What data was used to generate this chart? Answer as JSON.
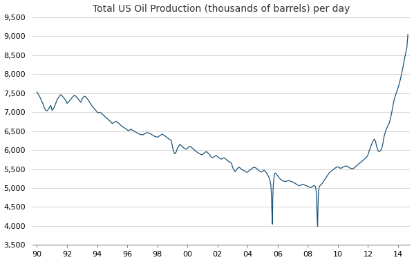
{
  "title": "Total US Oil Production (thousands of barrels) per day",
  "line_color": "#1a5276",
  "background_color": "#ffffff",
  "grid_color": "#d0d0d0",
  "ylim": [
    3500,
    9500
  ],
  "yticks": [
    3500,
    4000,
    4500,
    5000,
    5500,
    6000,
    6500,
    7000,
    7500,
    8000,
    8500,
    9000,
    9500
  ],
  "ytick_labels": [
    "3,500",
    "4,000",
    "4,500",
    "5,000",
    "5,500",
    "6,000",
    "6,500",
    "7,000",
    "7,500",
    "8,000",
    "8,500",
    "9,000",
    "9,500"
  ],
  "xtick_positions": [
    1990,
    1992,
    1994,
    1996,
    1998,
    2000,
    2002,
    2004,
    2006,
    2008,
    2010,
    2012,
    2014
  ],
  "xtick_labels": [
    "90",
    "92",
    "94",
    "96",
    "98",
    "00",
    "02",
    "04",
    "06",
    "08",
    "10",
    "12",
    "14"
  ],
  "xlim_start": 1989.7,
  "xlim_end": 2014.8,
  "data": [
    [
      1990.0,
      7530
    ],
    [
      1990.08,
      7480
    ],
    [
      1990.17,
      7420
    ],
    [
      1990.25,
      7350
    ],
    [
      1990.33,
      7280
    ],
    [
      1990.42,
      7200
    ],
    [
      1990.5,
      7100
    ],
    [
      1990.58,
      7050
    ],
    [
      1990.67,
      7030
    ],
    [
      1990.75,
      7070
    ],
    [
      1990.83,
      7120
    ],
    [
      1990.92,
      7180
    ],
    [
      1991.0,
      7050
    ],
    [
      1991.08,
      7080
    ],
    [
      1991.17,
      7150
    ],
    [
      1991.25,
      7230
    ],
    [
      1991.33,
      7320
    ],
    [
      1991.42,
      7380
    ],
    [
      1991.5,
      7430
    ],
    [
      1991.58,
      7460
    ],
    [
      1991.67,
      7430
    ],
    [
      1991.75,
      7390
    ],
    [
      1991.83,
      7350
    ],
    [
      1991.92,
      7310
    ],
    [
      1992.0,
      7230
    ],
    [
      1992.08,
      7260
    ],
    [
      1992.17,
      7300
    ],
    [
      1992.25,
      7340
    ],
    [
      1992.33,
      7380
    ],
    [
      1992.42,
      7420
    ],
    [
      1992.5,
      7440
    ],
    [
      1992.58,
      7420
    ],
    [
      1992.67,
      7380
    ],
    [
      1992.75,
      7340
    ],
    [
      1992.83,
      7300
    ],
    [
      1992.92,
      7260
    ],
    [
      1993.0,
      7350
    ],
    [
      1993.08,
      7390
    ],
    [
      1993.17,
      7420
    ],
    [
      1993.25,
      7400
    ],
    [
      1993.33,
      7360
    ],
    [
      1993.42,
      7310
    ],
    [
      1993.5,
      7260
    ],
    [
      1993.58,
      7210
    ],
    [
      1993.67,
      7160
    ],
    [
      1993.75,
      7120
    ],
    [
      1993.83,
      7080
    ],
    [
      1993.92,
      7040
    ],
    [
      1994.0,
      7000
    ],
    [
      1994.08,
      6980
    ],
    [
      1994.17,
      7000
    ],
    [
      1994.25,
      6980
    ],
    [
      1994.33,
      6950
    ],
    [
      1994.42,
      6920
    ],
    [
      1994.5,
      6890
    ],
    [
      1994.58,
      6860
    ],
    [
      1994.67,
      6830
    ],
    [
      1994.75,
      6800
    ],
    [
      1994.83,
      6770
    ],
    [
      1994.92,
      6740
    ],
    [
      1995.0,
      6700
    ],
    [
      1995.08,
      6720
    ],
    [
      1995.17,
      6740
    ],
    [
      1995.25,
      6760
    ],
    [
      1995.33,
      6740
    ],
    [
      1995.42,
      6710
    ],
    [
      1995.5,
      6680
    ],
    [
      1995.58,
      6650
    ],
    [
      1995.67,
      6620
    ],
    [
      1995.75,
      6600
    ],
    [
      1995.83,
      6580
    ],
    [
      1995.92,
      6560
    ],
    [
      1996.0,
      6530
    ],
    [
      1996.08,
      6510
    ],
    [
      1996.17,
      6530
    ],
    [
      1996.25,
      6550
    ],
    [
      1996.33,
      6530
    ],
    [
      1996.42,
      6510
    ],
    [
      1996.5,
      6490
    ],
    [
      1996.58,
      6470
    ],
    [
      1996.67,
      6450
    ],
    [
      1996.75,
      6430
    ],
    [
      1996.83,
      6420
    ],
    [
      1996.92,
      6410
    ],
    [
      1997.0,
      6400
    ],
    [
      1997.08,
      6410
    ],
    [
      1997.17,
      6430
    ],
    [
      1997.25,
      6450
    ],
    [
      1997.33,
      6460
    ],
    [
      1997.42,
      6450
    ],
    [
      1997.5,
      6440
    ],
    [
      1997.58,
      6420
    ],
    [
      1997.67,
      6400
    ],
    [
      1997.75,
      6380
    ],
    [
      1997.83,
      6360
    ],
    [
      1997.92,
      6350
    ],
    [
      1998.0,
      6340
    ],
    [
      1998.08,
      6360
    ],
    [
      1998.17,
      6380
    ],
    [
      1998.25,
      6400
    ],
    [
      1998.33,
      6420
    ],
    [
      1998.42,
      6400
    ],
    [
      1998.5,
      6380
    ],
    [
      1998.58,
      6350
    ],
    [
      1998.67,
      6320
    ],
    [
      1998.75,
      6300
    ],
    [
      1998.83,
      6280
    ],
    [
      1998.92,
      6260
    ],
    [
      1999.0,
      6100
    ],
    [
      1999.08,
      5960
    ],
    [
      1999.17,
      5900
    ],
    [
      1999.25,
      5950
    ],
    [
      1999.33,
      6050
    ],
    [
      1999.42,
      6100
    ],
    [
      1999.5,
      6150
    ],
    [
      1999.58,
      6120
    ],
    [
      1999.67,
      6090
    ],
    [
      1999.75,
      6060
    ],
    [
      1999.83,
      6040
    ],
    [
      1999.92,
      6020
    ],
    [
      2000.0,
      6050
    ],
    [
      2000.08,
      6080
    ],
    [
      2000.17,
      6100
    ],
    [
      2000.25,
      6080
    ],
    [
      2000.33,
      6050
    ],
    [
      2000.42,
      6020
    ],
    [
      2000.5,
      5990
    ],
    [
      2000.58,
      5960
    ],
    [
      2000.67,
      5940
    ],
    [
      2000.75,
      5920
    ],
    [
      2000.83,
      5900
    ],
    [
      2000.92,
      5880
    ],
    [
      2001.0,
      5880
    ],
    [
      2001.08,
      5910
    ],
    [
      2001.17,
      5940
    ],
    [
      2001.25,
      5960
    ],
    [
      2001.33,
      5940
    ],
    [
      2001.42,
      5900
    ],
    [
      2001.5,
      5860
    ],
    [
      2001.58,
      5820
    ],
    [
      2001.67,
      5800
    ],
    [
      2001.75,
      5820
    ],
    [
      2001.83,
      5840
    ],
    [
      2001.92,
      5860
    ],
    [
      2002.0,
      5830
    ],
    [
      2002.08,
      5800
    ],
    [
      2002.17,
      5780
    ],
    [
      2002.25,
      5760
    ],
    [
      2002.33,
      5780
    ],
    [
      2002.42,
      5800
    ],
    [
      2002.5,
      5780
    ],
    [
      2002.58,
      5750
    ],
    [
      2002.67,
      5720
    ],
    [
      2002.75,
      5700
    ],
    [
      2002.83,
      5680
    ],
    [
      2002.92,
      5660
    ],
    [
      2003.0,
      5550
    ],
    [
      2003.08,
      5480
    ],
    [
      2003.17,
      5430
    ],
    [
      2003.25,
      5480
    ],
    [
      2003.33,
      5520
    ],
    [
      2003.42,
      5550
    ],
    [
      2003.5,
      5530
    ],
    [
      2003.58,
      5500
    ],
    [
      2003.67,
      5480
    ],
    [
      2003.75,
      5460
    ],
    [
      2003.83,
      5440
    ],
    [
      2003.92,
      5420
    ],
    [
      2004.0,
      5420
    ],
    [
      2004.08,
      5450
    ],
    [
      2004.17,
      5480
    ],
    [
      2004.25,
      5500
    ],
    [
      2004.33,
      5530
    ],
    [
      2004.42,
      5550
    ],
    [
      2004.5,
      5540
    ],
    [
      2004.58,
      5520
    ],
    [
      2004.67,
      5490
    ],
    [
      2004.75,
      5460
    ],
    [
      2004.83,
      5440
    ],
    [
      2004.92,
      5420
    ],
    [
      2005.0,
      5450
    ],
    [
      2005.08,
      5470
    ],
    [
      2005.17,
      5440
    ],
    [
      2005.25,
      5400
    ],
    [
      2005.33,
      5350
    ],
    [
      2005.42,
      5280
    ],
    [
      2005.5,
      5180
    ],
    [
      2005.55,
      5050
    ],
    [
      2005.58,
      4800
    ],
    [
      2005.62,
      4300
    ],
    [
      2005.65,
      4050
    ],
    [
      2005.67,
      4700
    ],
    [
      2005.7,
      5050
    ],
    [
      2005.75,
      5280
    ],
    [
      2005.8,
      5380
    ],
    [
      2005.85,
      5400
    ],
    [
      2005.9,
      5380
    ],
    [
      2005.95,
      5350
    ],
    [
      2006.0,
      5320
    ],
    [
      2006.08,
      5280
    ],
    [
      2006.17,
      5240
    ],
    [
      2006.25,
      5210
    ],
    [
      2006.33,
      5190
    ],
    [
      2006.42,
      5180
    ],
    [
      2006.5,
      5170
    ],
    [
      2006.58,
      5180
    ],
    [
      2006.67,
      5190
    ],
    [
      2006.75,
      5200
    ],
    [
      2006.83,
      5180
    ],
    [
      2006.92,
      5170
    ],
    [
      2007.0,
      5160
    ],
    [
      2007.08,
      5140
    ],
    [
      2007.17,
      5120
    ],
    [
      2007.25,
      5100
    ],
    [
      2007.33,
      5080
    ],
    [
      2007.42,
      5060
    ],
    [
      2007.5,
      5070
    ],
    [
      2007.58,
      5090
    ],
    [
      2007.67,
      5100
    ],
    [
      2007.75,
      5090
    ],
    [
      2007.83,
      5070
    ],
    [
      2007.92,
      5060
    ],
    [
      2008.0,
      5050
    ],
    [
      2008.08,
      5030
    ],
    [
      2008.17,
      5010
    ],
    [
      2008.25,
      5020
    ],
    [
      2008.33,
      5050
    ],
    [
      2008.42,
      5070
    ],
    [
      2008.5,
      5040
    ],
    [
      2008.55,
      4950
    ],
    [
      2008.58,
      4700
    ],
    [
      2008.62,
      4200
    ],
    [
      2008.65,
      3990
    ],
    [
      2008.67,
      4400
    ],
    [
      2008.7,
      4850
    ],
    [
      2008.75,
      5020
    ],
    [
      2008.8,
      5060
    ],
    [
      2008.85,
      5080
    ],
    [
      2008.9,
      5100
    ],
    [
      2008.95,
      5120
    ],
    [
      2009.0,
      5150
    ],
    [
      2009.08,
      5200
    ],
    [
      2009.17,
      5250
    ],
    [
      2009.25,
      5300
    ],
    [
      2009.33,
      5350
    ],
    [
      2009.42,
      5400
    ],
    [
      2009.5,
      5430
    ],
    [
      2009.58,
      5450
    ],
    [
      2009.67,
      5480
    ],
    [
      2009.75,
      5510
    ],
    [
      2009.83,
      5530
    ],
    [
      2009.92,
      5550
    ],
    [
      2010.0,
      5560
    ],
    [
      2010.08,
      5540
    ],
    [
      2010.17,
      5520
    ],
    [
      2010.25,
      5530
    ],
    [
      2010.33,
      5550
    ],
    [
      2010.42,
      5570
    ],
    [
      2010.5,
      5580
    ],
    [
      2010.58,
      5580
    ],
    [
      2010.67,
      5560
    ],
    [
      2010.75,
      5540
    ],
    [
      2010.83,
      5520
    ],
    [
      2010.92,
      5510
    ],
    [
      2011.0,
      5510
    ],
    [
      2011.08,
      5530
    ],
    [
      2011.17,
      5560
    ],
    [
      2011.25,
      5590
    ],
    [
      2011.33,
      5620
    ],
    [
      2011.42,
      5650
    ],
    [
      2011.5,
      5670
    ],
    [
      2011.58,
      5700
    ],
    [
      2011.67,
      5730
    ],
    [
      2011.75,
      5760
    ],
    [
      2011.83,
      5790
    ],
    [
      2011.92,
      5820
    ],
    [
      2012.0,
      5880
    ],
    [
      2012.08,
      5980
    ],
    [
      2012.17,
      6080
    ],
    [
      2012.25,
      6160
    ],
    [
      2012.33,
      6240
    ],
    [
      2012.42,
      6290
    ],
    [
      2012.5,
      6230
    ],
    [
      2012.58,
      6080
    ],
    [
      2012.67,
      5980
    ],
    [
      2012.75,
      5960
    ],
    [
      2012.83,
      5990
    ],
    [
      2012.92,
      6050
    ],
    [
      2013.0,
      6200
    ],
    [
      2013.08,
      6380
    ],
    [
      2013.17,
      6500
    ],
    [
      2013.25,
      6580
    ],
    [
      2013.33,
      6650
    ],
    [
      2013.42,
      6720
    ],
    [
      2013.5,
      6850
    ],
    [
      2013.58,
      7000
    ],
    [
      2013.67,
      7200
    ],
    [
      2013.75,
      7350
    ],
    [
      2013.83,
      7450
    ],
    [
      2013.92,
      7550
    ],
    [
      2014.0,
      7650
    ],
    [
      2014.08,
      7750
    ],
    [
      2014.17,
      7900
    ],
    [
      2014.25,
      8050
    ],
    [
      2014.33,
      8200
    ],
    [
      2014.42,
      8400
    ],
    [
      2014.5,
      8550
    ],
    [
      2014.58,
      8700
    ],
    [
      2014.65,
      9050
    ]
  ]
}
